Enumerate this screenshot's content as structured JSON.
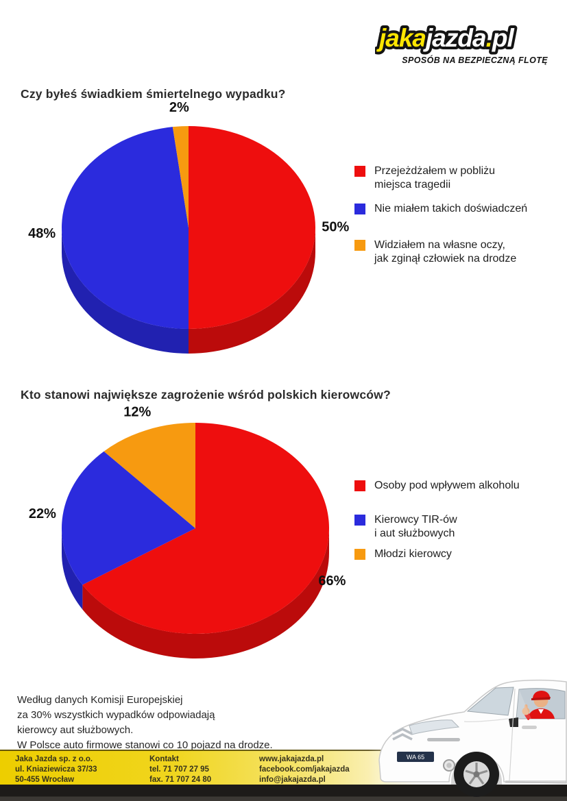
{
  "logo": {
    "jaka": "jaka",
    "jazda": "jazda",
    "dot": ".",
    "pl": "pl",
    "tagline": "SPOSÓB NA BEZPIECZNĄ FLOTĘ",
    "accent_color": "#ffe600",
    "outline_color": "#141414"
  },
  "questions": [
    "Czy byłeś świadkiem śmiertelnego wypadku?",
    "Kto stanowi największe zagrożenie wśród polskich kierowców?"
  ],
  "chart_data": [
    {
      "type": "pie",
      "style": "3d",
      "title": "Czy byłeś świadkiem śmiertelnego wypadku?",
      "labels": [
        "Przejeżdżałem w pobliżu miejsca tragedii",
        "Nie miałem takich doświadczeń",
        "Widziałem na własne oczy, jak zginął człowiek na drodze"
      ],
      "legend_lines": [
        [
          "Przejeżdżałem w pobliżu",
          "miejsca tragedii"
        ],
        [
          "Nie miałem takich doświadczeń"
        ],
        [
          "Widziałem na własne oczy,",
          "jak zginął człowiek na drodze"
        ]
      ],
      "values": [
        50,
        48,
        2
      ],
      "value_labels": [
        "50%",
        "48%",
        "2%"
      ],
      "colors": [
        "#ee0e0e",
        "#2b2bdd",
        "#f79a10"
      ],
      "side_colors": [
        "#bb0b0b",
        "#2121b0",
        "#c47a08"
      ],
      "start_angle_deg": 0,
      "direction": "clockwise",
      "legend_position": "right"
    },
    {
      "type": "pie",
      "style": "3d",
      "title": "Kto stanowi największe zagrożenie wśród polskich kierowców?",
      "labels": [
        "Osoby pod wpływem alkoholu",
        "Kierowcy TIR-ów i aut służbowych",
        "Młodzi kierowcy"
      ],
      "legend_lines": [
        [
          "Osoby pod wpływem alkoholu"
        ],
        [
          "Kierowcy TIR-ów",
          "i aut służbowych"
        ],
        [
          "Młodzi kierowcy"
        ]
      ],
      "values": [
        66,
        22,
        12
      ],
      "value_labels": [
        "66%",
        "22%",
        "12%"
      ],
      "colors": [
        "#ee0e0e",
        "#2b2bdd",
        "#f79a10"
      ],
      "side_colors": [
        "#bb0b0b",
        "#2121b0",
        "#c47a08"
      ],
      "start_angle_deg": 0,
      "direction": "clockwise",
      "legend_position": "right"
    }
  ],
  "footnote": {
    "lines": [
      "Według danych Komisji Europejskiej",
      "za 30% wszystkich wypadków odpowiadają",
      "kierowcy aut służbowych.",
      "W Polsce auto firmowe stanowi co 10 pojazd na drodze."
    ]
  },
  "footer": {
    "columns": [
      {
        "lines": [
          "Jaka Jazda sp. z o.o.",
          "ul. Kniaziewicza 37/33",
          "50-455 Wrocław"
        ]
      },
      {
        "lines": [
          "Kontakt",
          "tel. 71 707 27 95",
          "fax. 71 707 24 80"
        ]
      },
      {
        "lines": [
          "www.jakajazda.pl",
          "facebook.com/jakajazda",
          "info@jakajazda.pl"
        ]
      }
    ]
  },
  "van": {
    "plate": "WA 65"
  }
}
